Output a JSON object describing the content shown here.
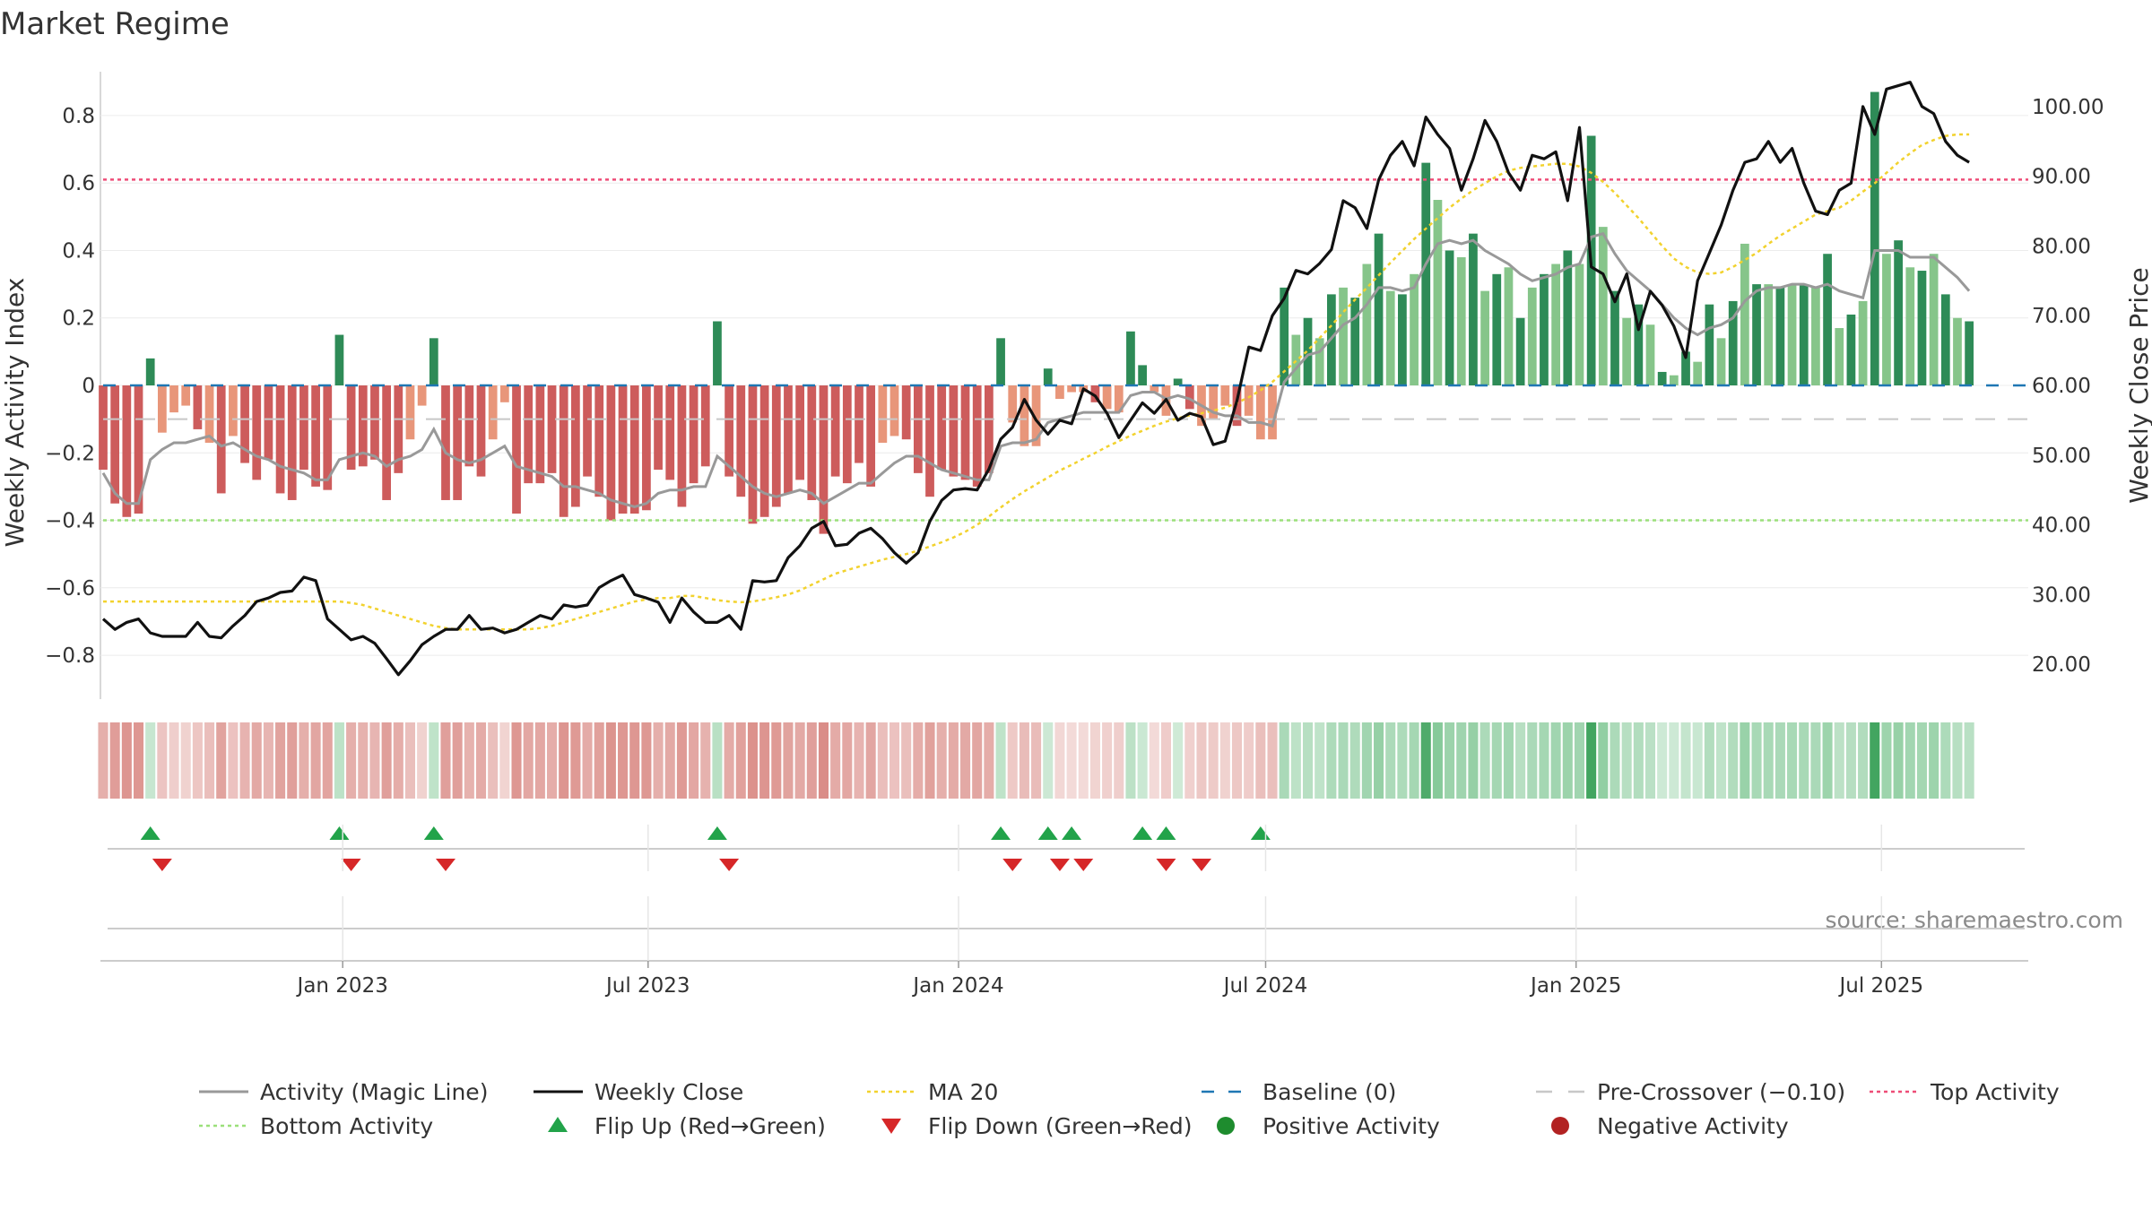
{
  "chart_data": {
    "type": "bar",
    "title": "Market Regime",
    "ylabel_left": "Weekly Activity Index",
    "ylabel_right": "Weekly Close Price",
    "source": "source: sharemaestro.com",
    "xlim": [
      "2022-08-12",
      "2025-09-26"
    ],
    "ylim_left": [
      -0.93,
      0.93
    ],
    "ylim_right": [
      15.0,
      105.0
    ],
    "left_ticks": [
      {
        "v": 0.8,
        "label": "0.8"
      },
      {
        "v": 0.6,
        "label": "0.6"
      },
      {
        "v": 0.4,
        "label": "0.4"
      },
      {
        "v": 0.2,
        "label": "0.2"
      },
      {
        "v": 0,
        "label": "0"
      },
      {
        "v": -0.2,
        "label": "−0.2"
      },
      {
        "v": -0.4,
        "label": "−0.4"
      },
      {
        "v": -0.6,
        "label": "−0.6"
      },
      {
        "v": -0.8,
        "label": "−0.8"
      }
    ],
    "right_ticks": [
      {
        "v": 100,
        "label": "100.00"
      },
      {
        "v": 90,
        "label": "90.00"
      },
      {
        "v": 80,
        "label": "80.00"
      },
      {
        "v": 70,
        "label": "70.00"
      },
      {
        "v": 60,
        "label": "60.00"
      },
      {
        "v": 50,
        "label": "50.00"
      },
      {
        "v": 40,
        "label": "40.00"
      },
      {
        "v": 30,
        "label": "30.00"
      },
      {
        "v": 20,
        "label": "20.00"
      }
    ],
    "x_ticks": [
      {
        "date": "2023-01-01",
        "label": "Jan 2023"
      },
      {
        "date": "2023-07-01",
        "label": "Jul 2023"
      },
      {
        "date": "2024-01-01",
        "label": "Jan 2024"
      },
      {
        "date": "2024-07-01",
        "label": "Jul 2024"
      },
      {
        "date": "2025-01-01",
        "label": "Jan 2025"
      },
      {
        "date": "2025-07-01",
        "label": "Jul 2025"
      }
    ],
    "reference_lines": {
      "top_activity": 0.61,
      "bottom_activity": -0.4,
      "pre_crossover": -0.1,
      "baseline": 0
    },
    "first_week": "2022-08-12",
    "activity": [
      -0.25,
      -0.35,
      -0.39,
      -0.38,
      0.08,
      -0.14,
      -0.08,
      -0.06,
      -0.13,
      -0.17,
      -0.32,
      -0.15,
      -0.23,
      -0.28,
      -0.22,
      -0.32,
      -0.34,
      -0.25,
      -0.3,
      -0.31,
      0.15,
      -0.25,
      -0.24,
      -0.22,
      -0.34,
      -0.26,
      -0.16,
      -0.06,
      0.14,
      -0.34,
      -0.34,
      -0.24,
      -0.27,
      -0.16,
      -0.05,
      -0.38,
      -0.29,
      -0.29,
      -0.26,
      -0.39,
      -0.36,
      -0.27,
      -0.33,
      -0.4,
      -0.38,
      -0.38,
      -0.37,
      -0.25,
      -0.28,
      -0.36,
      -0.29,
      -0.24,
      0.19,
      -0.27,
      -0.33,
      -0.41,
      -0.39,
      -0.36,
      -0.32,
      -0.28,
      -0.34,
      -0.44,
      -0.27,
      -0.29,
      -0.23,
      -0.3,
      -0.17,
      -0.15,
      -0.16,
      -0.26,
      -0.33,
      -0.25,
      -0.27,
      -0.28,
      -0.3,
      -0.26,
      0.14,
      -0.11,
      -0.18,
      -0.18,
      0.05,
      -0.04,
      -0.02,
      -0.02,
      -0.05,
      -0.07,
      -0.08,
      0.16,
      0.06,
      -0.02,
      -0.09,
      0.02,
      -0.07,
      -0.12,
      -0.1,
      -0.06,
      -0.12,
      -0.09,
      -0.16,
      -0.16,
      0.29,
      0.15,
      0.2,
      0.14,
      0.27,
      0.29,
      0.26,
      0.36,
      0.45,
      0.28,
      0.27,
      0.33,
      0.66,
      0.55,
      0.4,
      0.38,
      0.45,
      0.28,
      0.33,
      0.35,
      0.2,
      0.29,
      0.33,
      0.36,
      0.4,
      0.36,
      0.74,
      0.47,
      0.28,
      0.2,
      0.24,
      0.18,
      0.04,
      0.03,
      0.1,
      0.07,
      0.24,
      0.14,
      0.25,
      0.42,
      0.3,
      0.3,
      0.29,
      0.3,
      0.3,
      0.29,
      0.39,
      0.17,
      0.21,
      0.25,
      0.87,
      0.39,
      0.43,
      0.35,
      0.34,
      0.39,
      0.27,
      0.2,
      0.19
    ],
    "magic_line": [
      -0.26,
      -0.32,
      -0.35,
      -0.35,
      -0.22,
      -0.19,
      -0.17,
      -0.17,
      -0.16,
      -0.15,
      -0.18,
      -0.17,
      -0.19,
      -0.21,
      -0.22,
      -0.24,
      -0.25,
      -0.26,
      -0.28,
      -0.28,
      -0.22,
      -0.21,
      -0.2,
      -0.21,
      -0.24,
      -0.22,
      -0.21,
      -0.19,
      -0.13,
      -0.2,
      -0.22,
      -0.23,
      -0.22,
      -0.2,
      -0.18,
      -0.24,
      -0.25,
      -0.26,
      -0.27,
      -0.3,
      -0.3,
      -0.31,
      -0.32,
      -0.34,
      -0.35,
      -0.36,
      -0.35,
      -0.32,
      -0.31,
      -0.31,
      -0.3,
      -0.3,
      -0.21,
      -0.24,
      -0.27,
      -0.3,
      -0.32,
      -0.33,
      -0.32,
      -0.31,
      -0.32,
      -0.35,
      -0.33,
      -0.31,
      -0.29,
      -0.29,
      -0.26,
      -0.23,
      -0.21,
      -0.21,
      -0.23,
      -0.25,
      -0.26,
      -0.27,
      -0.28,
      -0.28,
      -0.18,
      -0.17,
      -0.17,
      -0.16,
      -0.11,
      -0.1,
      -0.09,
      -0.08,
      -0.08,
      -0.08,
      -0.08,
      -0.03,
      -0.02,
      -0.02,
      -0.04,
      -0.03,
      -0.04,
      -0.06,
      -0.08,
      -0.09,
      -0.09,
      -0.11,
      -0.11,
      -0.12,
      0.01,
      0.05,
      0.09,
      0.1,
      0.14,
      0.18,
      0.2,
      0.24,
      0.29,
      0.29,
      0.28,
      0.29,
      0.36,
      0.42,
      0.43,
      0.42,
      0.43,
      0.4,
      0.38,
      0.36,
      0.33,
      0.31,
      0.32,
      0.33,
      0.35,
      0.36,
      0.44,
      0.45,
      0.39,
      0.34,
      0.31,
      0.28,
      0.24,
      0.2,
      0.17,
      0.15,
      0.17,
      0.18,
      0.2,
      0.25,
      0.28,
      0.29,
      0.29,
      0.3,
      0.3,
      0.29,
      0.3,
      0.28,
      0.27,
      0.26,
      0.4,
      0.4,
      0.4,
      0.38,
      0.38,
      0.38,
      0.35,
      0.32,
      0.28
    ],
    "weekly_close": [
      26.5,
      25.0,
      26.0,
      26.5,
      24.5,
      24.0,
      24.0,
      24.0,
      26.0,
      24.0,
      23.8,
      25.5,
      27.0,
      29.0,
      29.5,
      30.3,
      30.5,
      32.5,
      32.0,
      26.5,
      25.0,
      23.5,
      24.0,
      23.0,
      20.8,
      18.5,
      20.5,
      22.8,
      24.0,
      25.0,
      25.0,
      27.0,
      25.0,
      25.2,
      24.5,
      25.0,
      26.0,
      27.0,
      26.5,
      28.5,
      28.2,
      28.5,
      31.0,
      32.0,
      32.8,
      30.0,
      29.5,
      28.9,
      26.0,
      29.5,
      27.5,
      26.0,
      26.0,
      27.0,
      25.0,
      32.0,
      31.8,
      32.0,
      35.3,
      37.0,
      39.5,
      40.5,
      37.0,
      37.2,
      38.8,
      39.5,
      38.0,
      36.0,
      34.5,
      36.0,
      40.5,
      43.5,
      45.0,
      45.2,
      45.0,
      48.0,
      52.3,
      54.0,
      58.0,
      55.0,
      53.0,
      55.0,
      54.5,
      59.5,
      58.5,
      56.0,
      52.5,
      55.0,
      57.5,
      56.0,
      58.0,
      55.0,
      56.0,
      55.5,
      51.5,
      52.0,
      57.8,
      65.5,
      65.0,
      70.0,
      72.5,
      76.5,
      76.0,
      77.5,
      79.5,
      86.5,
      85.5,
      82.5,
      89.5,
      93.0,
      95.0,
      91.5,
      98.5,
      96.0,
      94.0,
      88.0,
      92.5,
      98.0,
      95.0,
      90.5,
      88.0,
      93.0,
      92.5,
      93.5,
      86.5,
      97.0,
      77.0,
      76.0,
      72.0,
      76.0,
      68.0,
      73.5,
      71.5,
      68.5,
      64.0,
      75.0,
      79.0,
      83.0,
      88.0,
      92.0,
      92.5,
      95.0,
      92.0,
      94.0,
      89.0,
      85.0,
      84.5,
      88.0,
      89.0,
      100.0,
      96.0,
      102.5,
      103.0,
      103.5,
      100.0,
      99.0,
      95.0,
      93.0,
      92.0
    ],
    "ma20": [
      29,
      29,
      29,
      29,
      29,
      29,
      29,
      29,
      29,
      29,
      29,
      29,
      29,
      29,
      29,
      29,
      29,
      29,
      29,
      29,
      29,
      28.8,
      28.5,
      28.0,
      27.5,
      27.0,
      26.5,
      26.0,
      25.5,
      25.2,
      25.0,
      25.0,
      25.0,
      25.0,
      25.0,
      25.0,
      25.0,
      25.2,
      25.5,
      26.0,
      26.5,
      27.0,
      27.5,
      28.0,
      28.5,
      29.0,
      29.3,
      29.5,
      29.5,
      29.8,
      29.8,
      29.5,
      29.2,
      29.0,
      28.9,
      29.0,
      29.3,
      29.6,
      30.0,
      30.6,
      31.4,
      32.2,
      33.0,
      33.5,
      34.0,
      34.5,
      35.0,
      35.4,
      35.8,
      36.3,
      36.9,
      37.5,
      38.2,
      39.0,
      40.0,
      41.2,
      42.5,
      43.7,
      44.8,
      45.8,
      46.8,
      47.8,
      48.6,
      49.5,
      50.3,
      51.2,
      52.0,
      52.8,
      53.5,
      54.2,
      54.8,
      55.3,
      55.7,
      56.0,
      56.4,
      56.8,
      57.5,
      58.3,
      59.3,
      60.5,
      62.0,
      63.5,
      65.0,
      66.8,
      68.6,
      70.5,
      72.3,
      74.0,
      75.8,
      77.6,
      79.3,
      81.0,
      82.5,
      84.0,
      85.5,
      86.8,
      88.0,
      89.0,
      90.0,
      90.8,
      91.2,
      91.4,
      91.6,
      91.8,
      91.8,
      91.4,
      90.5,
      89.2,
      87.6,
      85.8,
      84.0,
      82.0,
      80.0,
      78.2,
      77.0,
      76.2,
      76.0,
      76.2,
      77.0,
      78.0,
      79.0,
      80.3,
      81.5,
      82.5,
      83.5,
      84.5,
      85.0,
      85.5,
      86.5,
      87.8,
      89.0,
      90.5,
      92.0,
      93.3,
      94.5,
      95.2,
      95.8,
      96.0,
      96.0
    ],
    "flip_up_weeks": [
      4,
      20,
      28,
      52,
      76,
      80,
      82,
      88,
      90,
      98
    ],
    "flip_down_weeks": [
      5,
      21,
      29,
      53,
      77,
      81,
      83,
      90,
      93
    ],
    "legend": [
      {
        "label": "Activity (Magic Line)",
        "style": "gray-line"
      },
      {
        "label": "Weekly Close",
        "style": "black-line"
      },
      {
        "label": "MA 20",
        "style": "yellow-dotted"
      },
      {
        "label": "Baseline (0)",
        "style": "blue-dashed"
      },
      {
        "label": "Pre-Crossover (−0.10)",
        "style": "lightgray-dashed"
      },
      {
        "label": "Top Activity",
        "style": "pink-dotted"
      },
      {
        "label": "Bottom Activity",
        "style": "green-dotted"
      },
      {
        "label": "Flip Up (Red→Green)",
        "style": "green-triangle-up"
      },
      {
        "label": "Flip Down (Green→Red)",
        "style": "red-triangle-down"
      },
      {
        "label": "Positive Activity",
        "style": "green-dot"
      },
      {
        "label": "Negative Activity",
        "style": "red-dot"
      }
    ],
    "colors": {
      "pos_strong": "#2e8b57",
      "pos_light": "#86c58a",
      "neg_strong": "#cd5c5c",
      "neg_light": "#e8967a",
      "magic_line": "#999999",
      "close": "#111111",
      "ma20": "#f2d22e",
      "baseline": "#1f77b4",
      "pre_crossover": "#c8c8c8",
      "top": "#ee4d77",
      "bottom": "#9be07a",
      "flip_up": "#22a34a",
      "flip_down": "#d62728",
      "pos_dot": "#1e8c2e",
      "neg_dot": "#b22222"
    }
  }
}
